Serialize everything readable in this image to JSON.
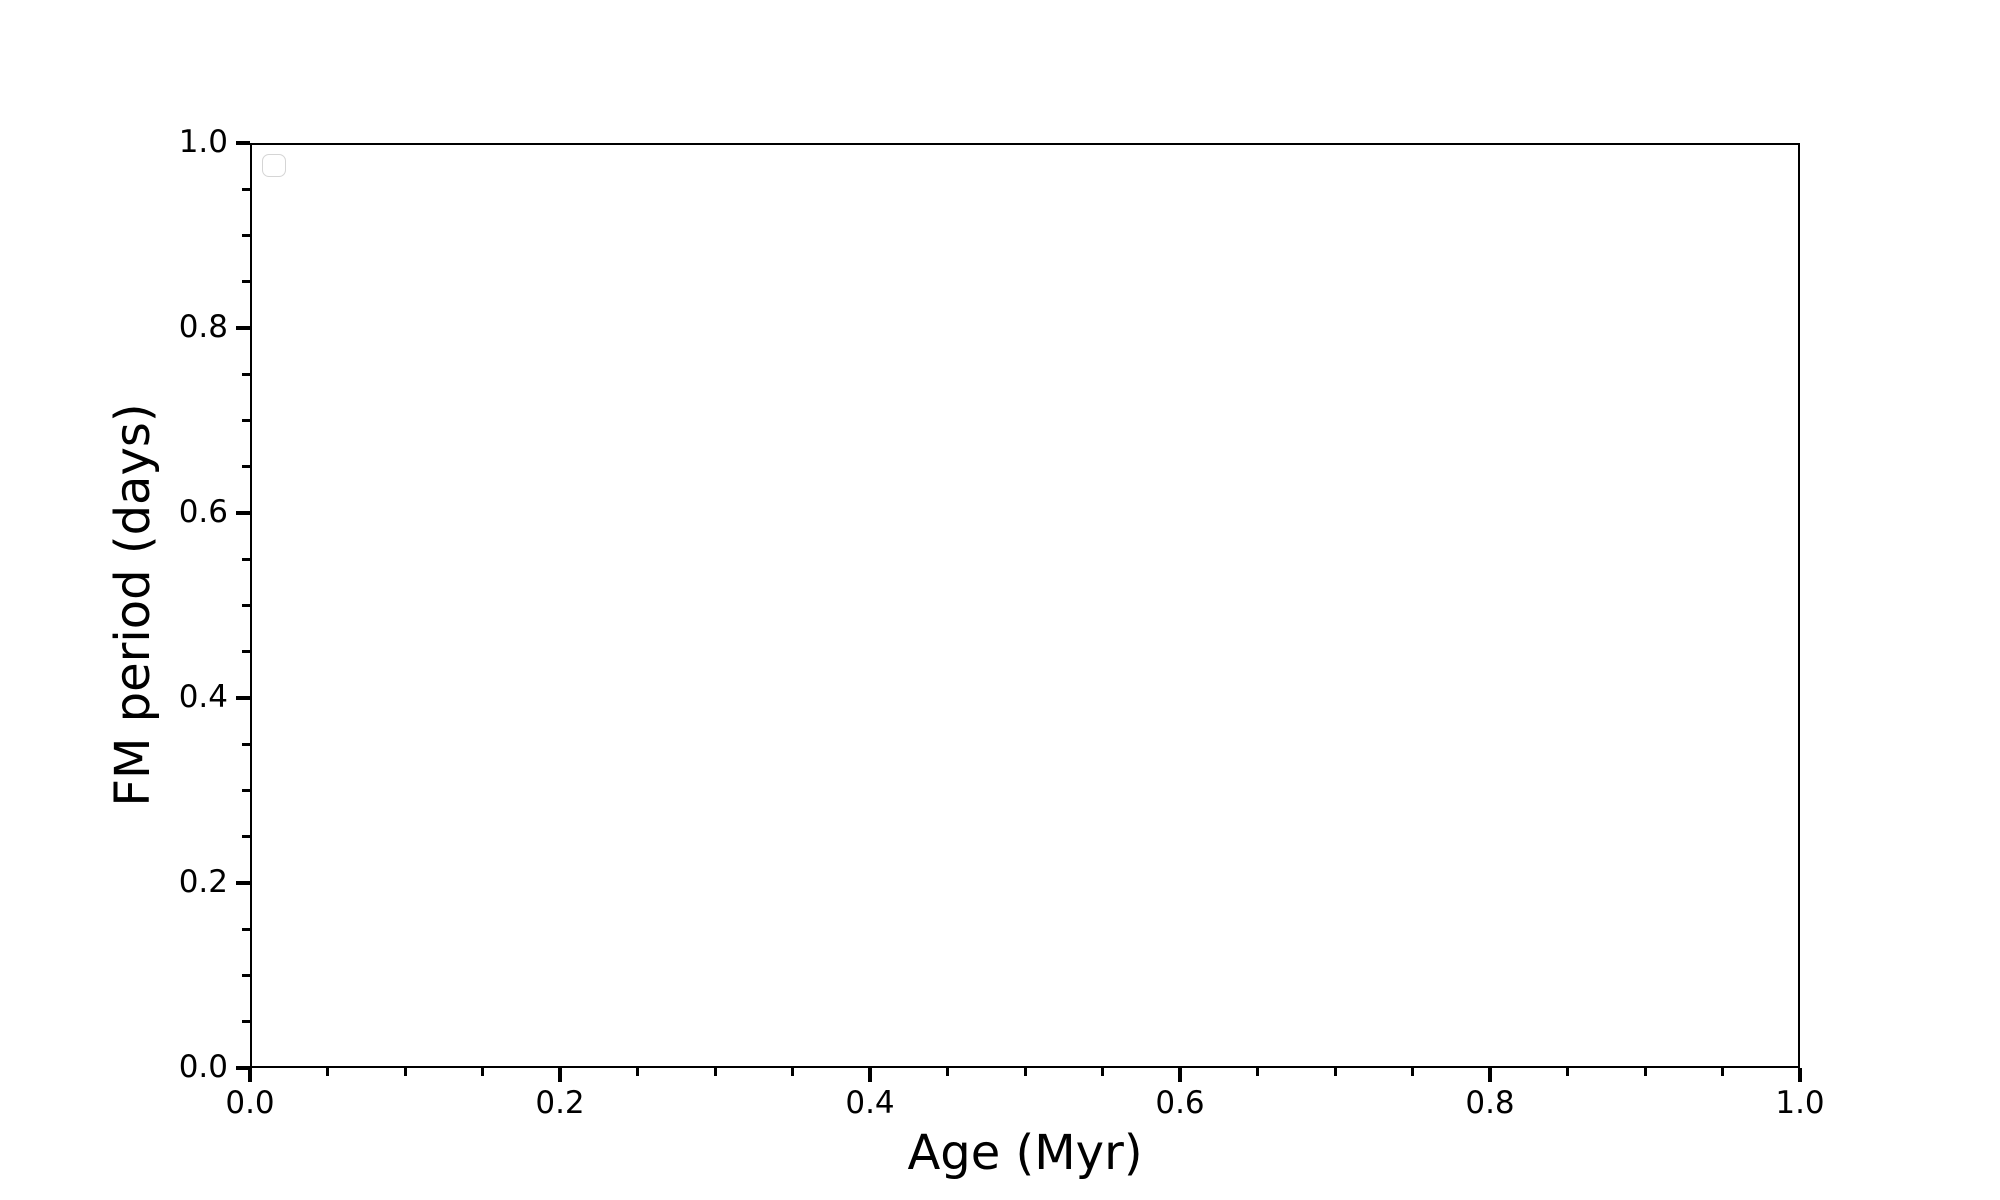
{
  "chart_data": {
    "type": "scatter",
    "title": "",
    "xlabel": "Age (Myr)",
    "ylabel": "FM period (days)",
    "xlim": [
      0.0,
      1.0
    ],
    "ylim": [
      0.0,
      1.0
    ],
    "x_major_ticks": [
      0.0,
      0.2,
      0.4,
      0.6,
      0.8,
      1.0
    ],
    "x_major_tick_labels": [
      "0.0",
      "0.2",
      "0.4",
      "0.6",
      "0.8",
      "1.0"
    ],
    "x_minor_ticks": [
      0.05,
      0.1,
      0.15,
      0.25,
      0.3,
      0.35,
      0.45,
      0.5,
      0.55,
      0.65,
      0.7,
      0.75,
      0.85,
      0.9,
      0.95
    ],
    "y_major_ticks": [
      0.0,
      0.2,
      0.4,
      0.6,
      0.8,
      1.0
    ],
    "y_major_tick_labels": [
      "0.0",
      "0.2",
      "0.4",
      "0.6",
      "0.8",
      "1.0"
    ],
    "y_minor_ticks": [
      0.05,
      0.1,
      0.15,
      0.25,
      0.3,
      0.35,
      0.45,
      0.5,
      0.55,
      0.65,
      0.7,
      0.75,
      0.85,
      0.9,
      0.95
    ],
    "series": [],
    "legend": {
      "visible": true,
      "entries": [],
      "position": "upper-left"
    },
    "grid": false,
    "colors": {
      "background": "#ffffff",
      "spine": "#000000",
      "tick": "#000000",
      "text": "#000000",
      "legend_border": "#d5d5d5"
    }
  }
}
